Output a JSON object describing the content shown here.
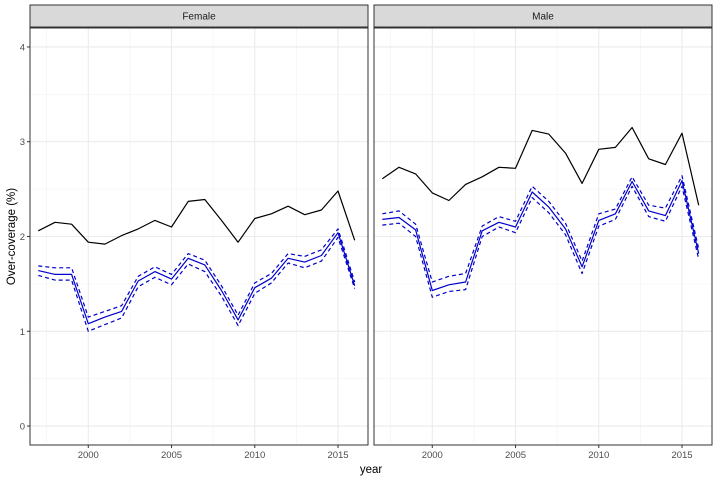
{
  "chart_data": {
    "type": "line",
    "xlabel": "year",
    "ylabel": "Over-coverage (%)",
    "xlim": [
      1996.5,
      2016.8
    ],
    "ylim": [
      -0.2,
      4.2
    ],
    "x_ticks": [
      2000,
      2005,
      2010,
      2015
    ],
    "y_ticks": [
      0,
      1,
      2,
      3,
      4
    ],
    "grid": true,
    "legend": "none",
    "colors": {
      "observed": "#000000",
      "estimate": "#0000cc",
      "strip_fill": "#d9d9d9",
      "panel_border": "#333333",
      "grid": "#ebebeb"
    },
    "x": [
      1997,
      1998,
      1999,
      2000,
      2001,
      2002,
      2003,
      2004,
      2005,
      2006,
      2007,
      2008,
      2009,
      2010,
      2011,
      2012,
      2013,
      2014,
      2015,
      2016
    ],
    "panels": [
      {
        "label": "Female",
        "series": [
          {
            "line": "solid",
            "color": "#000000",
            "values": [
              2.06,
              2.15,
              2.13,
              1.94,
              1.92,
              2.01,
              2.08,
              2.17,
              2.1,
              2.37,
              2.39,
              2.17,
              1.94,
              2.19,
              2.24,
              2.32,
              2.23,
              2.28,
              2.48,
              1.96
            ]
          },
          {
            "line": "solid",
            "color": "#0000cc",
            "values": [
              1.64,
              1.6,
              1.6,
              1.08,
              1.15,
              1.21,
              1.53,
              1.63,
              1.55,
              1.77,
              1.7,
              1.43,
              1.12,
              1.46,
              1.56,
              1.77,
              1.73,
              1.8,
              2.04,
              1.48
            ]
          },
          {
            "line": "dashed",
            "color": "#0000cc",
            "values": [
              1.69,
              1.67,
              1.67,
              1.15,
              1.21,
              1.27,
              1.58,
              1.68,
              1.6,
              1.82,
              1.75,
              1.48,
              1.17,
              1.51,
              1.61,
              1.82,
              1.79,
              1.86,
              2.08,
              1.52
            ]
          },
          {
            "line": "dashed",
            "color": "#0000cc",
            "values": [
              1.59,
              1.54,
              1.54,
              1.0,
              1.07,
              1.14,
              1.47,
              1.57,
              1.49,
              1.71,
              1.63,
              1.37,
              1.06,
              1.4,
              1.51,
              1.72,
              1.67,
              1.74,
              1.99,
              1.45
            ]
          }
        ]
      },
      {
        "label": "Male",
        "series": [
          {
            "line": "solid",
            "color": "#000000",
            "values": [
              2.61,
              2.73,
              2.66,
              2.46,
              2.38,
              2.55,
              2.63,
              2.73,
              2.72,
              3.12,
              3.08,
              2.88,
              2.56,
              2.92,
              2.94,
              3.15,
              2.82,
              2.76,
              3.09,
              2.33
            ]
          },
          {
            "line": "solid",
            "color": "#0000cc",
            "values": [
              2.18,
              2.2,
              2.07,
              1.43,
              1.49,
              1.52,
              2.06,
              2.15,
              2.1,
              2.47,
              2.31,
              2.08,
              1.68,
              2.17,
              2.24,
              2.58,
              2.27,
              2.22,
              2.59,
              1.82
            ]
          },
          {
            "line": "dashed",
            "color": "#0000cc",
            "values": [
              2.24,
              2.27,
              2.13,
              1.52,
              1.58,
              1.61,
              2.11,
              2.21,
              2.16,
              2.53,
              2.37,
              2.14,
              1.74,
              2.24,
              2.29,
              2.63,
              2.33,
              2.3,
              2.64,
              1.87
            ]
          },
          {
            "line": "dashed",
            "color": "#0000cc",
            "values": [
              2.12,
              2.14,
              2.0,
              1.36,
              1.42,
              1.44,
              2.0,
              2.1,
              2.04,
              2.41,
              2.25,
              2.02,
              1.61,
              2.11,
              2.18,
              2.53,
              2.21,
              2.16,
              2.53,
              1.76
            ]
          }
        ]
      }
    ]
  }
}
